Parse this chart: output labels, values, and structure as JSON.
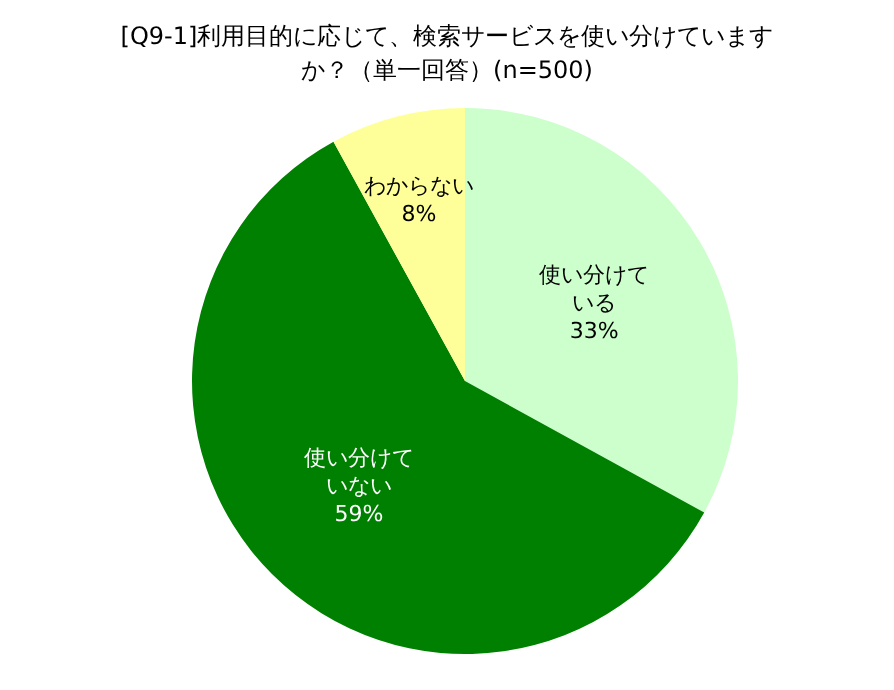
{
  "chart_data": {
    "type": "pie",
    "title": "[Q9-1]利用目的に応じて、検索サービスを使い分けていますか？（単一回答）(n=500)",
    "categories": [
      "使い分けている",
      "使い分けていない",
      "わからない"
    ],
    "values": [
      33,
      59,
      8
    ],
    "colors": [
      "#ccffcc",
      "#008000",
      "#ffff99"
    ],
    "value_labels": [
      "33%",
      "59%",
      "8%"
    ],
    "legend": false
  }
}
